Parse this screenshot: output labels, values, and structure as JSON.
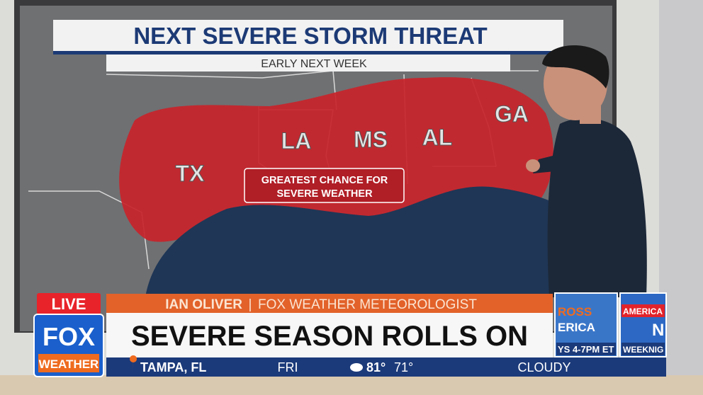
{
  "map": {
    "title": "NEXT SEVERE STORM THREAT",
    "subtitle": "EARLY NEXT WEEK",
    "states": [
      "TX",
      "LA",
      "MS",
      "AL",
      "GA"
    ],
    "callout": [
      "GREATEST CHANCE FOR",
      "SEVERE WEATHER"
    ]
  },
  "lower_third": {
    "live": "LIVE",
    "logo": [
      "FOX",
      "WEATHER"
    ],
    "name": "IAN OLIVER",
    "separator": "|",
    "role": "FOX WEATHER METEOROLOGIST",
    "headline": "SEVERE SEASON ROLLS ON",
    "location": "TAMPA, FL",
    "day": "FRI",
    "high": "81°",
    "low": "71°",
    "condition": "CLOUDY"
  },
  "promos": [
    [
      "ROSS",
      "ERICA",
      "YS 4-7PM ET"
    ],
    [
      "AMERICA",
      "N",
      "WEEKNIG"
    ]
  ]
}
